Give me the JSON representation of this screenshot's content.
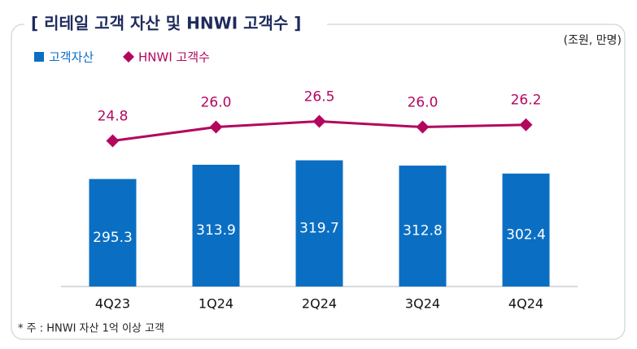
{
  "chart_data": {
    "type": "combo",
    "title": "[ 리테일 고객 자산 및 HNWI 고객수 ]",
    "unit": "(조원, 만명)",
    "note": "* 주 : HNWI 자산 1억 이상 고객",
    "categories": [
      "4Q23",
      "1Q24",
      "2Q24",
      "3Q24",
      "4Q24"
    ],
    "series": [
      {
        "name": "고객자산",
        "type": "bar",
        "color": "#0a6fc3",
        "values": [
          295.3,
          313.9,
          319.7,
          312.8,
          302.4
        ]
      },
      {
        "name": "HNWI 고객수",
        "type": "line",
        "axis": "y2",
        "color": "#b3075e",
        "values": [
          24.8,
          26.0,
          26.5,
          26.0,
          26.2
        ],
        "value_labels": [
          "24.8",
          "26.0",
          "26.5",
          "26.0",
          "26.2"
        ]
      }
    ],
    "ylim": [
      155,
      423
    ],
    "y2lim": [
      12.1,
      30.0
    ],
    "legend": "top-left"
  }
}
